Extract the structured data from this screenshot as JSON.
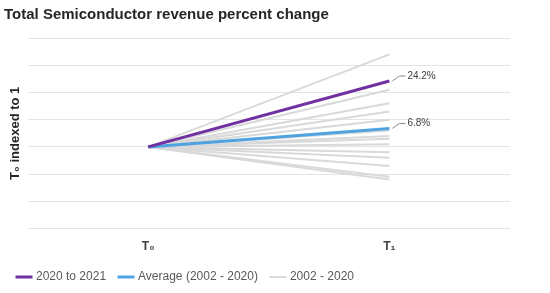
{
  "chart_data": {
    "type": "line",
    "title": "Total Semiconductor revenue percent change",
    "y_label": "T₀ indexed to 1",
    "categories": [
      "T₀",
      "T₁"
    ],
    "series": [
      {
        "name": "2002 - 2020",
        "color": "#d9d9d9",
        "values": [
          1,
          1.34
        ]
      },
      {
        "name": "2002 - 2020",
        "color": "#d9d9d9",
        "values": [
          1,
          1.21
        ]
      },
      {
        "name": "2002 - 2020",
        "color": "#d9d9d9",
        "values": [
          1,
          1.16
        ]
      },
      {
        "name": "2002 - 2020",
        "color": "#d9d9d9",
        "values": [
          1,
          1.13
        ]
      },
      {
        "name": "2002 - 2020",
        "color": "#d9d9d9",
        "values": [
          1,
          1.1
        ]
      },
      {
        "name": "2002 - 2020",
        "color": "#d9d9d9",
        "values": [
          1,
          1.06
        ]
      },
      {
        "name": "2002 - 2020",
        "color": "#d9d9d9",
        "values": [
          1,
          1.04
        ]
      },
      {
        "name": "2002 - 2020",
        "color": "#d9d9d9",
        "values": [
          1,
          1.03
        ]
      },
      {
        "name": "2002 - 2020",
        "color": "#d9d9d9",
        "values": [
          1,
          1.01
        ]
      },
      {
        "name": "2002 - 2020",
        "color": "#d9d9d9",
        "values": [
          1,
          0.98
        ]
      },
      {
        "name": "2002 - 2020",
        "color": "#d9d9d9",
        "values": [
          1,
          0.96
        ]
      },
      {
        "name": "2002 - 2020",
        "color": "#d9d9d9",
        "values": [
          1,
          0.93
        ]
      },
      {
        "name": "2002 - 2020",
        "color": "#d9d9d9",
        "values": [
          1,
          0.89
        ]
      },
      {
        "name": "2002 - 2020",
        "color": "#d9d9d9",
        "values": [
          1,
          0.88
        ]
      },
      {
        "name": "2020 to 2021",
        "color": "#7030a0",
        "values": [
          1,
          1.242
        ]
      },
      {
        "name": "Average (2002 - 2020)",
        "color": "#4ea3e0",
        "values": [
          1,
          1.068
        ]
      }
    ],
    "annotations": [
      {
        "text": "24.2%",
        "x": "T₁",
        "y": 1.242
      },
      {
        "text": "6.8%",
        "x": "T₁",
        "y": 1.068
      }
    ],
    "ylim": [
      0.7,
      1.4
    ],
    "yticks": [
      0.7,
      0.8,
      0.9,
      1.0,
      1.1,
      1.2,
      1.3,
      1.4
    ],
    "grid": true,
    "legend": "bottom",
    "tick_labels": "x"
  }
}
